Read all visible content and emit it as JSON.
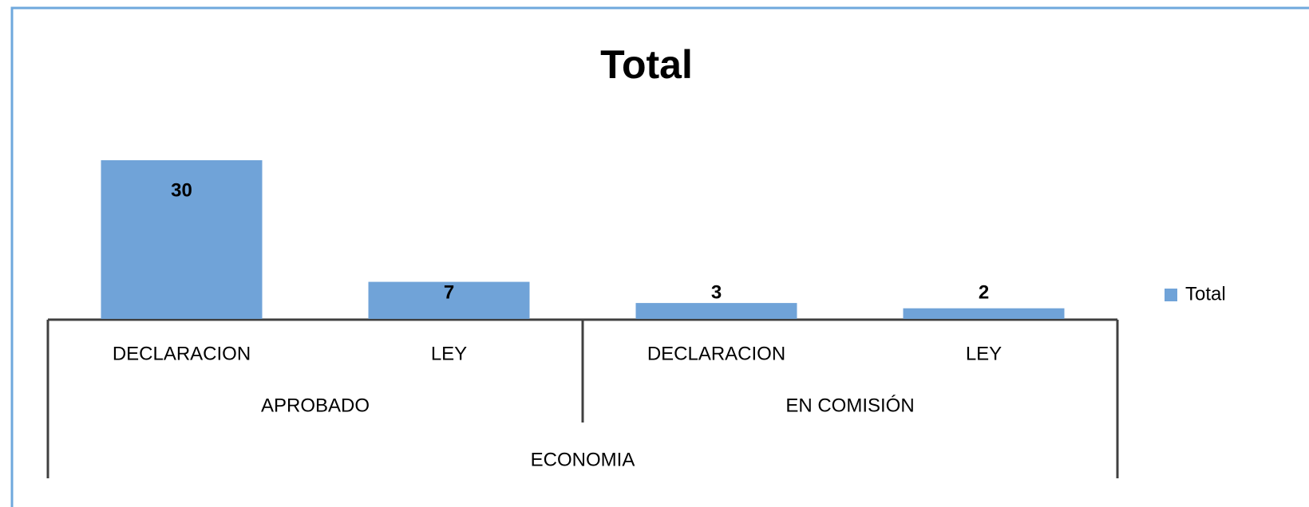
{
  "chart_data": {
    "type": "bar",
    "title": "Total",
    "category_tree": {
      "label": "ECONOMIA",
      "children": [
        {
          "label": "APROBADO",
          "children": [
            "DECLARACION",
            "LEY"
          ]
        },
        {
          "label": "EN COMISIÓN",
          "children": [
            "DECLARACION",
            "LEY"
          ]
        }
      ]
    },
    "series": [
      {
        "name": "Total",
        "color": "#70a3d8",
        "values": [
          30,
          7,
          3,
          2
        ]
      }
    ],
    "legend": "right"
  }
}
